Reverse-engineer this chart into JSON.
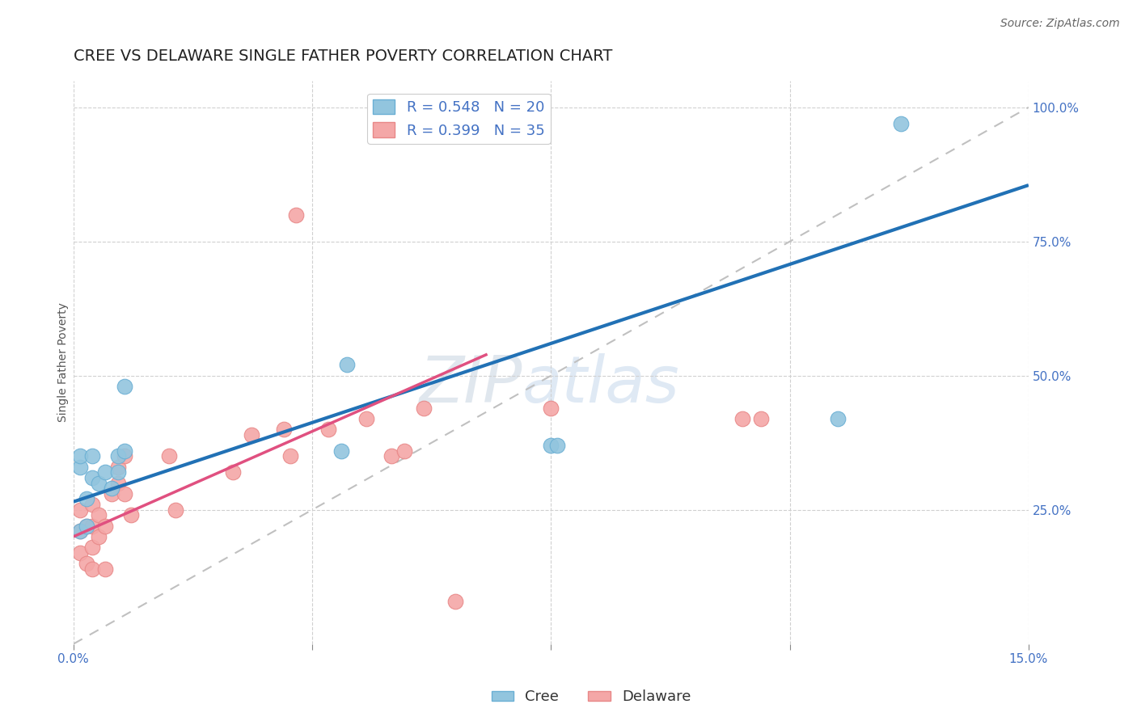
{
  "title": "CREE VS DELAWARE SINGLE FATHER POVERTY CORRELATION CHART",
  "source": "Source: ZipAtlas.com",
  "ylabel": "Single Father Poverty",
  "xlim": [
    0.0,
    0.15
  ],
  "ylim": [
    0.0,
    1.05
  ],
  "xticks": [
    0.0,
    0.0375,
    0.075,
    0.1125,
    0.15
  ],
  "xtick_labels": [
    "0.0%",
    "",
    "",
    "",
    "15.0%"
  ],
  "ytick_right_labels": [
    "25.0%",
    "50.0%",
    "75.0%",
    "100.0%"
  ],
  "ytick_right_values": [
    0.25,
    0.5,
    0.75,
    1.0
  ],
  "cree_color": "#92c5de",
  "delaware_color": "#f4a7a7",
  "cree_R": 0.548,
  "cree_N": 20,
  "delaware_R": 0.399,
  "delaware_N": 35,
  "cree_trend_x": [
    0.0,
    0.15
  ],
  "cree_trend_y": [
    0.265,
    0.855
  ],
  "delaware_trend_x": [
    0.0,
    0.065
  ],
  "delaware_trend_y": [
    0.2,
    0.54
  ],
  "ref_line_x": [
    0.0,
    0.15
  ],
  "ref_line_y": [
    0.0,
    1.0
  ],
  "cree_scatter_x": [
    0.001,
    0.001,
    0.002,
    0.003,
    0.003,
    0.004,
    0.005,
    0.006,
    0.007,
    0.007,
    0.008,
    0.008,
    0.001,
    0.002,
    0.042,
    0.043,
    0.075,
    0.076,
    0.12,
    0.13
  ],
  "cree_scatter_y": [
    0.33,
    0.35,
    0.27,
    0.31,
    0.35,
    0.3,
    0.32,
    0.29,
    0.32,
    0.35,
    0.36,
    0.48,
    0.21,
    0.22,
    0.36,
    0.52,
    0.37,
    0.37,
    0.42,
    0.97
  ],
  "delaware_scatter_x": [
    0.001,
    0.001,
    0.001,
    0.002,
    0.002,
    0.003,
    0.003,
    0.003,
    0.003,
    0.004,
    0.004,
    0.005,
    0.005,
    0.006,
    0.007,
    0.007,
    0.008,
    0.008,
    0.009,
    0.015,
    0.016,
    0.025,
    0.028,
    0.033,
    0.034,
    0.035,
    0.04,
    0.046,
    0.05,
    0.052,
    0.055,
    0.06,
    0.075,
    0.105,
    0.108
  ],
  "delaware_scatter_y": [
    0.17,
    0.21,
    0.25,
    0.15,
    0.22,
    0.14,
    0.18,
    0.22,
    0.26,
    0.2,
    0.24,
    0.14,
    0.22,
    0.28,
    0.3,
    0.33,
    0.28,
    0.35,
    0.24,
    0.35,
    0.25,
    0.32,
    0.39,
    0.4,
    0.35,
    0.8,
    0.4,
    0.42,
    0.35,
    0.36,
    0.44,
    0.08,
    0.44,
    0.42,
    0.42
  ],
  "grid_color": "#d0d0d0",
  "ref_line_color": "#c0c0c0",
  "background_color": "#ffffff",
  "title_fontsize": 14,
  "axis_label_fontsize": 10,
  "tick_fontsize": 11,
  "legend_fontsize": 13
}
